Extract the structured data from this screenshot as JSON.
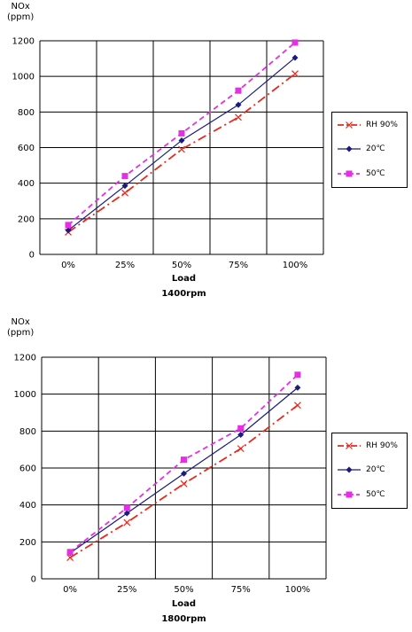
{
  "colors": {
    "rh90": "#e8291d",
    "t20": "#1a1a80",
    "t50": "#e62ee6",
    "grid": "#000000"
  },
  "chart_data": [
    {
      "type": "line",
      "ylabel": "NOx\n(ppm)",
      "xlabel": "Load",
      "subtitle": "1400rpm",
      "categories": [
        "0%",
        "25%",
        "50%",
        "75%",
        "100%"
      ],
      "ylim": [
        0,
        1200
      ],
      "yticks": [
        "0",
        "200",
        "400",
        "600",
        "800",
        "1000",
        "1200"
      ],
      "grid": true,
      "legend_position": "right",
      "series": [
        {
          "name": "RH 90%",
          "values": [
            125,
            345,
            590,
            770,
            1015
          ],
          "style": "dashdot",
          "marker": "x",
          "color_key": "rh90"
        },
        {
          "name": "20℃",
          "values": [
            135,
            385,
            640,
            840,
            1105
          ],
          "style": "solid",
          "marker": "diamond",
          "color_key": "t20"
        },
        {
          "name": "50℃",
          "values": [
            165,
            440,
            680,
            920,
            1190
          ],
          "style": "dashed",
          "marker": "square",
          "color_key": "t50"
        }
      ]
    },
    {
      "type": "line",
      "ylabel": "NOx\n(ppm)",
      "xlabel": "Load",
      "subtitle": "1800rpm",
      "categories": [
        "0%",
        "25%",
        "50%",
        "75%",
        "100%"
      ],
      "ylim": [
        0,
        1200
      ],
      "yticks": [
        "0",
        "200",
        "400",
        "600",
        "800",
        "1000",
        "1200"
      ],
      "grid": true,
      "legend_position": "right",
      "series": [
        {
          "name": "RH 90%",
          "values": [
            115,
            305,
            515,
            705,
            940
          ],
          "style": "dashdot",
          "marker": "x",
          "color_key": "rh90"
        },
        {
          "name": "20℃",
          "values": [
            140,
            355,
            570,
            780,
            1035
          ],
          "style": "solid",
          "marker": "diamond",
          "color_key": "t20"
        },
        {
          "name": "50℃",
          "values": [
            145,
            385,
            645,
            815,
            1105
          ],
          "style": "dashed",
          "marker": "square",
          "color_key": "t50"
        }
      ]
    }
  ]
}
